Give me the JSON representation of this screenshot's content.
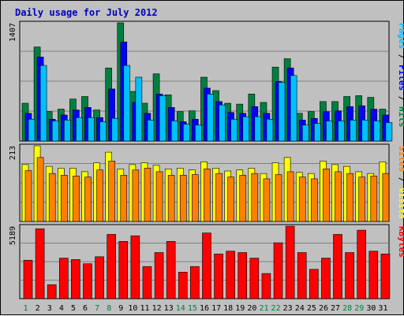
{
  "title": "Daily usage for July 2012",
  "colors": {
    "background": "#c0c0c0",
    "panel": "#c0c0c0",
    "grid": "#808080",
    "pages": "#00c0ff",
    "files": "#0000ff",
    "hits": "#008040",
    "visits": "#ffff00",
    "sites": "#ff8000",
    "kbytes": "#ff0000",
    "weekend_label": "#008040",
    "weekday_label": "#000000"
  },
  "right_labels": {
    "top": [
      {
        "text": "Pages",
        "color": "#00c0ff"
      },
      {
        "text": " / ",
        "color": "#000000"
      },
      {
        "text": "Files",
        "color": "#0000ff"
      },
      {
        "text": " / ",
        "color": "#000000"
      },
      {
        "text": "Hits",
        "color": "#008040"
      }
    ],
    "mid": [
      {
        "text": "Sites",
        "color": "#ff8000"
      },
      {
        "text": " / ",
        "color": "#000000"
      },
      {
        "text": "Visits",
        "color": "#ffff00"
      }
    ],
    "bot": [
      {
        "text": "KBytes",
        "color": "#ff0000"
      }
    ]
  },
  "chart_data": [
    {
      "type": "bar",
      "name": "Hits / Files / Pages",
      "ymax_label": "1407",
      "ylim": [
        0,
        1407
      ],
      "categories": [
        "1",
        "2",
        "3",
        "4",
        "5",
        "6",
        "7",
        "8",
        "9",
        "10",
        "11",
        "12",
        "13",
        "14",
        "15",
        "16",
        "17",
        "18",
        "19",
        "20",
        "21",
        "22",
        "23",
        "24",
        "25",
        "26",
        "27",
        "28",
        "29",
        "30",
        "31"
      ],
      "weekend": [
        1,
        7,
        8,
        14,
        15,
        21,
        22,
        28,
        29
      ],
      "series": [
        {
          "name": "Hits",
          "values": [
            450,
            1120,
            350,
            380,
            500,
            530,
            370,
            870,
            1407,
            590,
            450,
            800,
            550,
            350,
            360,
            760,
            600,
            450,
            440,
            560,
            460,
            880,
            980,
            330,
            350,
            470,
            470,
            530,
            540,
            520,
            380
          ]
        },
        {
          "name": "Files",
          "values": [
            330,
            1000,
            260,
            310,
            370,
            400,
            280,
            620,
            1180,
            460,
            330,
            560,
            400,
            230,
            260,
            630,
            470,
            340,
            330,
            410,
            330,
            710,
            870,
            250,
            270,
            350,
            360,
            410,
            420,
            380,
            310
          ]
        },
        {
          "name": "Pages",
          "values": [
            260,
            900,
            240,
            250,
            280,
            280,
            230,
            270,
            900,
            760,
            250,
            540,
            240,
            200,
            190,
            560,
            430,
            260,
            290,
            290,
            260,
            700,
            780,
            190,
            210,
            240,
            240,
            250,
            250,
            240,
            220
          ]
        }
      ]
    },
    {
      "type": "bar",
      "name": "Visits / Sites",
      "ymax_label": "213",
      "ylim": [
        0,
        213
      ],
      "categories": [
        "1",
        "2",
        "3",
        "4",
        "5",
        "6",
        "7",
        "8",
        "9",
        "10",
        "11",
        "12",
        "13",
        "14",
        "15",
        "16",
        "17",
        "18",
        "19",
        "20",
        "21",
        "22",
        "23",
        "24",
        "25",
        "26",
        "27",
        "28",
        "29",
        "30",
        "31"
      ],
      "series": [
        {
          "name": "Visits",
          "values": [
            160,
            213,
            155,
            150,
            150,
            140,
            165,
            195,
            148,
            160,
            165,
            158,
            148,
            150,
            145,
            168,
            150,
            142,
            145,
            150,
            135,
            165,
            180,
            138,
            135,
            170,
            160,
            155,
            140,
            135,
            168
          ]
        },
        {
          "name": "Sites",
          "values": [
            143,
            180,
            135,
            130,
            128,
            125,
            145,
            170,
            130,
            145,
            150,
            140,
            130,
            130,
            132,
            148,
            135,
            125,
            130,
            135,
            120,
            132,
            140,
            125,
            120,
            148,
            140,
            135,
            125,
            128,
            135
          ]
        }
      ]
    },
    {
      "type": "bar",
      "name": "KBytes",
      "ymax_label": "5189",
      "ylim": [
        0,
        5189
      ],
      "categories": [
        "1",
        "2",
        "3",
        "4",
        "5",
        "6",
        "7",
        "8",
        "9",
        "10",
        "11",
        "12",
        "13",
        "14",
        "15",
        "16",
        "17",
        "18",
        "19",
        "20",
        "21",
        "22",
        "23",
        "24",
        "25",
        "26",
        "27",
        "28",
        "29",
        "30",
        "31"
      ],
      "series": [
        {
          "name": "KBytes",
          "values": [
            2750,
            5000,
            1000,
            2900,
            2800,
            2500,
            3000,
            4600,
            4100,
            4500,
            2300,
            3300,
            4100,
            1900,
            2300,
            4700,
            3200,
            3400,
            3300,
            2900,
            1800,
            4000,
            5189,
            3300,
            2100,
            2900,
            4600,
            3300,
            4900,
            3400,
            3200
          ]
        }
      ]
    }
  ]
}
